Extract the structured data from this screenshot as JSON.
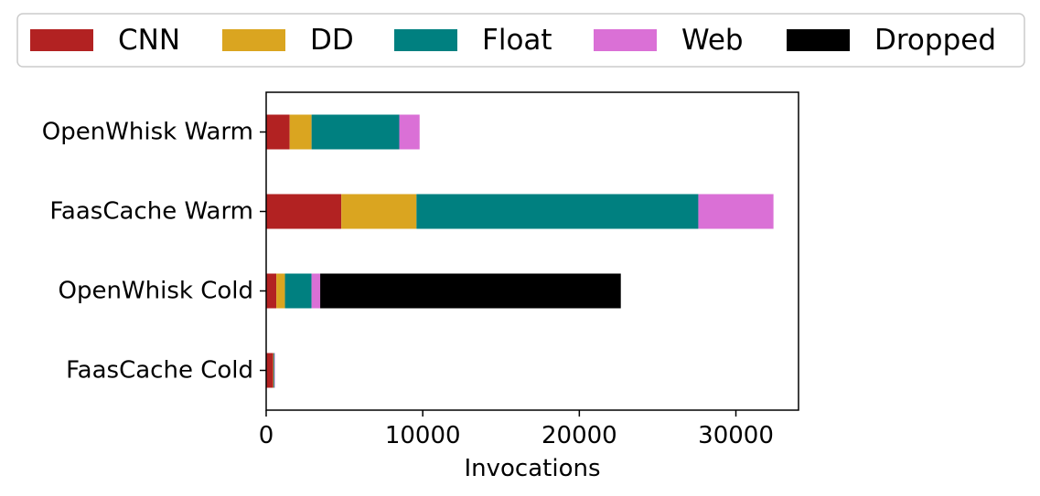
{
  "chart_data": {
    "type": "bar",
    "orientation": "horizontal",
    "stacked": true,
    "xlabel": "Invocations",
    "ylabel": "",
    "xlim": [
      0,
      34000
    ],
    "x_ticks": [
      0,
      10000,
      20000,
      30000
    ],
    "categories": [
      "OpenWhisk Warm",
      "FaasCache Warm",
      "OpenWhisk Cold",
      "FaasCache Cold"
    ],
    "series": [
      {
        "name": "CNN",
        "color": "#b22222",
        "values": [
          1500,
          4800,
          650,
          450
        ]
      },
      {
        "name": "DD",
        "color": "#daa520",
        "values": [
          1400,
          4800,
          550,
          30
        ]
      },
      {
        "name": "Float",
        "color": "#008080",
        "values": [
          5600,
          18000,
          1700,
          50
        ]
      },
      {
        "name": "Web",
        "color": "#da70d6",
        "values": [
          1300,
          4800,
          550,
          30
        ]
      },
      {
        "name": "Dropped",
        "color": "#000000",
        "values": [
          0,
          0,
          19200,
          0
        ]
      }
    ],
    "legend_position": "top",
    "grid": false
  }
}
